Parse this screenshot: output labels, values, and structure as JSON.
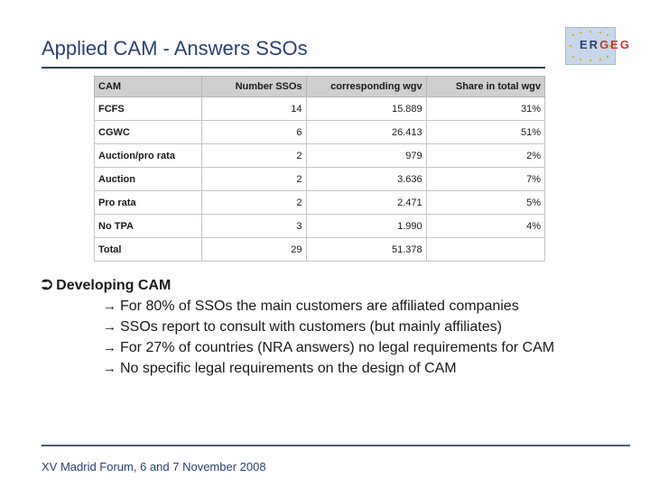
{
  "header": {
    "title": "Applied CAM - Answers SSOs",
    "logo": {
      "letters_a": "ER",
      "letters_b": "GEG",
      "accent": "#c0392b",
      "brand": "#2a3f73"
    }
  },
  "table": {
    "columns": [
      "CAM",
      "Number SSOs",
      "corresponding wgv",
      "Share in total wgv"
    ],
    "rows": [
      [
        "FCFS",
        "14",
        "15.889",
        "31%"
      ],
      [
        "CGWC",
        "6",
        "26.413",
        "51%"
      ],
      [
        "Auction/pro rata",
        "2",
        "979",
        "2%"
      ],
      [
        "Auction",
        "2",
        "3.636",
        "7%"
      ],
      [
        "Pro rata",
        "2",
        "2.471",
        "5%"
      ],
      [
        "No TPA",
        "3",
        "1.990",
        "4%"
      ],
      [
        "Total",
        "29",
        "51.378",
        ""
      ]
    ]
  },
  "bullets": {
    "main": "Developing CAM",
    "items": [
      "For 80% of SSOs the main customers are affiliated companies",
      "SSOs report to consult with customers (but mainly affiliates)",
      "For 27% of countries (NRA answers) no legal requirements for CAM",
      "No specific legal requirements on the design of CAM"
    ]
  },
  "footer": {
    "text": "XV Madrid Forum, 6 and 7 November 2008"
  }
}
